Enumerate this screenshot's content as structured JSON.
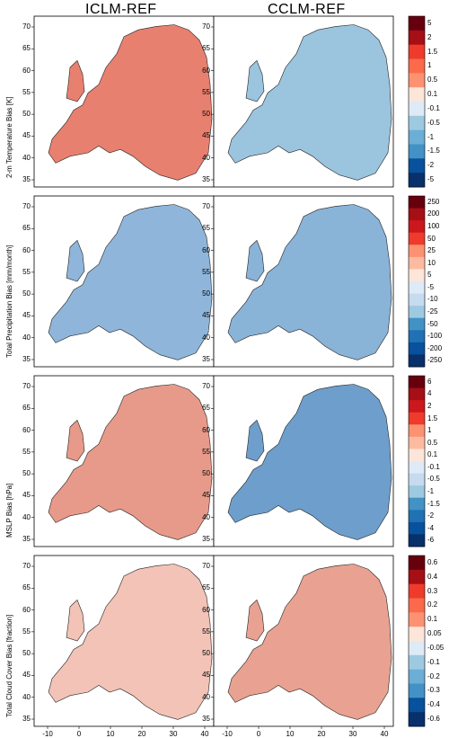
{
  "columns": [
    "ICLM-REF",
    "CCLM-REF"
  ],
  "rows": [
    {
      "label": "2-m Temperature Bias [K]",
      "ticks": [
        "5",
        "2",
        "1.5",
        "1",
        "0.5",
        "0.1",
        "-0.1",
        "-0.5",
        "-1",
        "-1.5",
        "-2",
        "-5"
      ],
      "colors": {
        "left": "#e88070",
        "right": "#9bc4de"
      }
    },
    {
      "label": "Total Precipitation Bias [mm/month]",
      "ticks": [
        "250",
        "200",
        "100",
        "50",
        "25",
        "10",
        "5",
        "-5",
        "-10",
        "-25",
        "-50",
        "-100",
        "-200",
        "-250"
      ],
      "colors": {
        "left": "#8fb6da",
        "right": "#8ab3d8"
      }
    },
    {
      "label": "MSLP Bias [hPa]",
      "ticks": [
        "6",
        "4",
        "2",
        "1.5",
        "1",
        "0.5",
        "0.1",
        "-0.1",
        "-0.5",
        "-1",
        "-1.5",
        "-2",
        "-4",
        "-6"
      ],
      "colors": {
        "left": "#e89a8a",
        "right": "#6e9fcc"
      }
    },
    {
      "label": "Total Cloud Cover Bias [fraction]",
      "ticks": [
        "0.6",
        "0.4",
        "0.3",
        "0.2",
        "0.1",
        "0.05",
        "-0.05",
        "-0.1",
        "-0.2",
        "-0.3",
        "-0.4",
        "-0.6"
      ],
      "colors": {
        "left": "#f2c3b6",
        "right": "#e9a291"
      }
    }
  ],
  "lat_ticks": [
    "70",
    "65",
    "60",
    "55",
    "50",
    "45",
    "40",
    "35"
  ],
  "lon_ticks": [
    "-10",
    "0",
    "10",
    "20",
    "30",
    "40"
  ]
}
